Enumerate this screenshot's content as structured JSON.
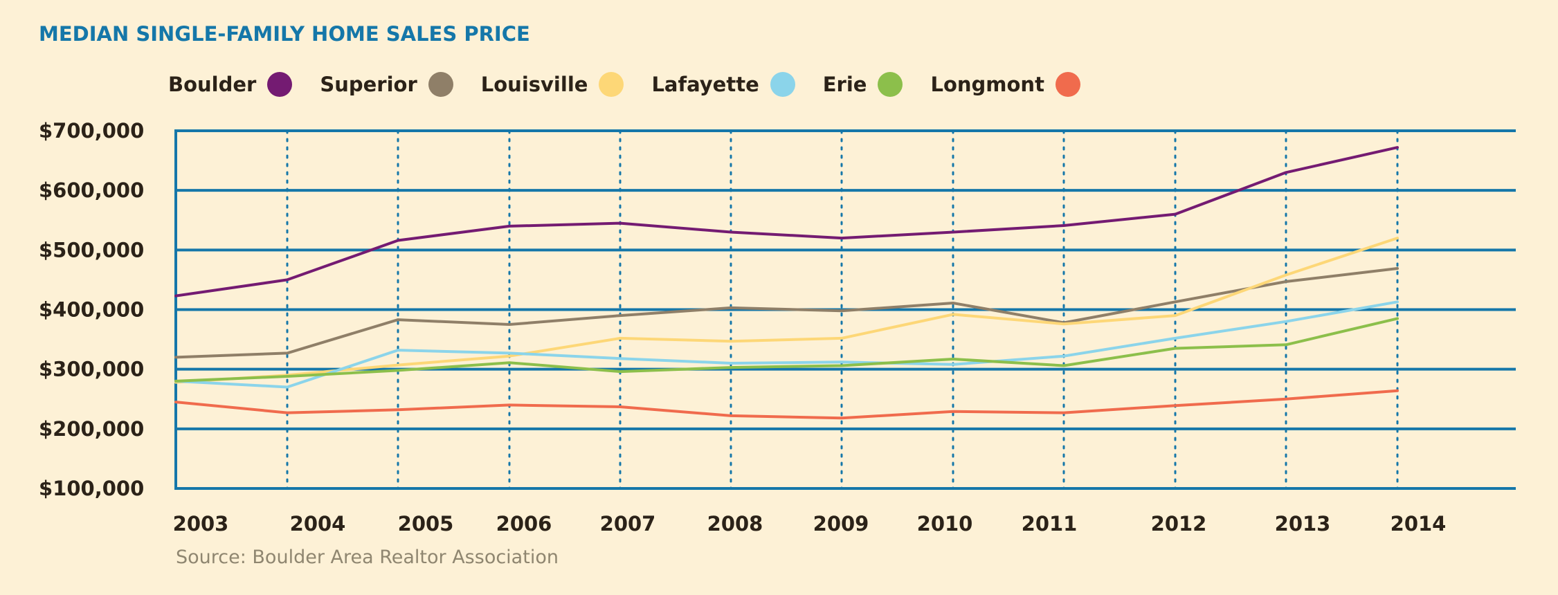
{
  "title": "MEDIAN SINGLE-FAMILY HOME SALES PRICE",
  "source": "Source: Boulder Area Realtor Association",
  "colors": {
    "background": "#fdf1d6",
    "title": "#1577a9",
    "grid": "#1577a9",
    "text": "#2b2218"
  },
  "chart_data": {
    "type": "line",
    "title": "MEDIAN SINGLE-FAMILY HOME SALES PRICE",
    "xlabel": "",
    "ylabel": "",
    "x": [
      "2003",
      "2004",
      "2005",
      "2006",
      "2007",
      "2008",
      "2009",
      "2010",
      "2011",
      "2012",
      "2013",
      "2014"
    ],
    "y_ticks": [
      "$700,000",
      "$600,000",
      "$500,000",
      "$400,000",
      "$300,000",
      "$200,000",
      "$100,000"
    ],
    "y_tick_values": [
      700000,
      600000,
      500000,
      400000,
      300000,
      200000,
      100000
    ],
    "ylim": [
      100000,
      700000
    ],
    "legend_position": "top-left",
    "series": [
      {
        "name": "Boulder",
        "color": "#741b72",
        "values": [
          423000,
          450000,
          516000,
          540000,
          545000,
          530000,
          520000,
          530000,
          541000,
          560000,
          630000,
          672000
        ]
      },
      {
        "name": "Superior",
        "color": "#8f7f68",
        "values": [
          320000,
          327000,
          383000,
          375000,
          390000,
          403000,
          398000,
          411000,
          378000,
          413000,
          447000,
          469000
        ]
      },
      {
        "name": "Louisville",
        "color": "#fdd777",
        "values": [
          278000,
          290000,
          307000,
          322000,
          352000,
          347000,
          352000,
          392000,
          376000,
          390000,
          458000,
          520000
        ]
      },
      {
        "name": "Lafayette",
        "color": "#8bd4ea",
        "values": [
          280000,
          270000,
          332000,
          327000,
          318000,
          310000,
          312000,
          308000,
          322000,
          352000,
          380000,
          413000
        ]
      },
      {
        "name": "Erie",
        "color": "#8cbf4b",
        "values": [
          280000,
          288000,
          298000,
          311000,
          296000,
          303000,
          306000,
          317000,
          306000,
          335000,
          341000,
          385000
        ]
      },
      {
        "name": "Longmont",
        "color": "#f06b4d",
        "values": [
          245000,
          227000,
          232000,
          240000,
          237000,
          222000,
          218000,
          229000,
          227000,
          239000,
          250000,
          264000
        ]
      }
    ]
  }
}
